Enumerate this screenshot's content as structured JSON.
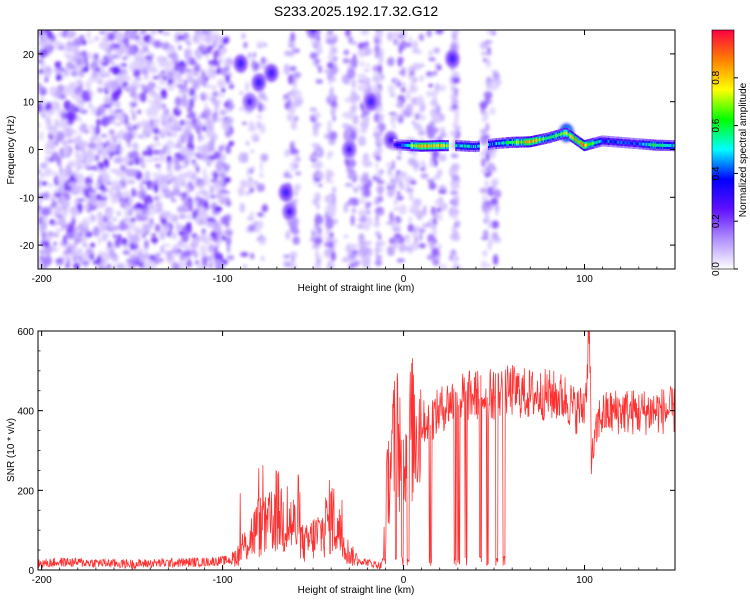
{
  "chart_data": [
    {
      "type": "heatmap",
      "title": "S233.2025.192.17.32.G12",
      "xlabel": "Height of straight line (km)",
      "ylabel": "Frequency (Hz)",
      "xlim": [
        -202,
        150
      ],
      "ylim": [
        -25,
        25
      ],
      "xticks": [
        -200,
        -100,
        0,
        100
      ],
      "yticks": [
        -20,
        -10,
        0,
        10,
        20
      ],
      "colorbar": {
        "label": "Normalized spectral amplitude",
        "range": [
          0,
          1
        ],
        "ticks": [
          0.0,
          0.2,
          0.4,
          0.6,
          0.8
        ],
        "colors": [
          "#ffffff",
          "#b090ff",
          "#6010ff",
          "#0000ff",
          "#00ffff",
          "#00ff00",
          "#ffff00",
          "#ff8000",
          "#ff0040"
        ]
      },
      "blobs": [
        {
          "x": -90,
          "y": 18,
          "amp": 0.25
        },
        {
          "x": -80,
          "y": 14,
          "amp": 0.25
        },
        {
          "x": -85,
          "y": 10,
          "amp": 0.2
        },
        {
          "x": -73,
          "y": 16,
          "amp": 0.25
        },
        {
          "x": -65,
          "y": -9,
          "amp": 0.25
        },
        {
          "x": -63,
          "y": -13,
          "amp": 0.22
        },
        {
          "x": -50,
          "y": 25,
          "amp": 0.18
        },
        {
          "x": -30,
          "y": 0,
          "amp": 0.22
        },
        {
          "x": -18,
          "y": 10,
          "amp": 0.25
        },
        {
          "x": -7,
          "y": 2,
          "amp": 0.22
        },
        {
          "x": 27,
          "y": 19,
          "amp": 0.25
        },
        {
          "x": 90,
          "y": 3.5,
          "amp": 0.55
        }
      ],
      "ridge": {
        "x": [
          -5,
          10,
          20,
          30,
          40,
          50,
          60,
          70,
          80,
          90,
          100,
          110,
          120,
          130,
          140,
          150
        ],
        "y": [
          1,
          0.7,
          0.8,
          0.8,
          0.6,
          1.2,
          1.5,
          1.6,
          2.4,
          3.5,
          0.8,
          1.8,
          1.5,
          1.2,
          0.9,
          0.8
        ],
        "amp": [
          0.25,
          0.85,
          0.85,
          0.5,
          0.5,
          0.45,
          0.6,
          0.85,
          0.6,
          0.7,
          0.85,
          0.4,
          0.4,
          0.4,
          0.65,
          0.5
        ]
      }
    },
    {
      "type": "line",
      "xlabel": "Height of straight line (km)",
      "ylabel": "SNR (10 * v/v)",
      "xlim": [
        -202,
        150
      ],
      "ylim": [
        0,
        600
      ],
      "xticks": [
        -200,
        -100,
        0,
        100
      ],
      "yticks": [
        0,
        200,
        400,
        600
      ],
      "series": [
        {
          "color": "#ff3030",
          "x": [
            -202,
            -190,
            -170,
            -150,
            -130,
            -110,
            -95,
            -90,
            -85,
            -80,
            -75,
            -70,
            -65,
            -60,
            -55,
            -50,
            -45,
            -40,
            -35,
            -30,
            -25,
            -12,
            -10,
            -8,
            -6,
            -4,
            -2,
            0,
            5,
            10,
            15,
            20,
            25,
            30,
            40,
            50,
            55,
            60,
            70,
            80,
            90,
            95,
            100,
            102,
            104,
            108,
            110,
            120,
            130,
            140,
            150
          ],
          "y": [
            15,
            20,
            18,
            15,
            18,
            20,
            25,
            45,
            80,
            110,
            105,
            150,
            120,
            110,
            60,
            80,
            95,
            140,
            90,
            40,
            25,
            10,
            150,
            250,
            300,
            340,
            320,
            330,
            350,
            370,
            380,
            400,
            420,
            430,
            440,
            440,
            445,
            450,
            440,
            440,
            430,
            400,
            410,
            560,
            280,
            380,
            390,
            400,
            395,
            400,
            400
          ]
        }
      ]
    }
  ]
}
